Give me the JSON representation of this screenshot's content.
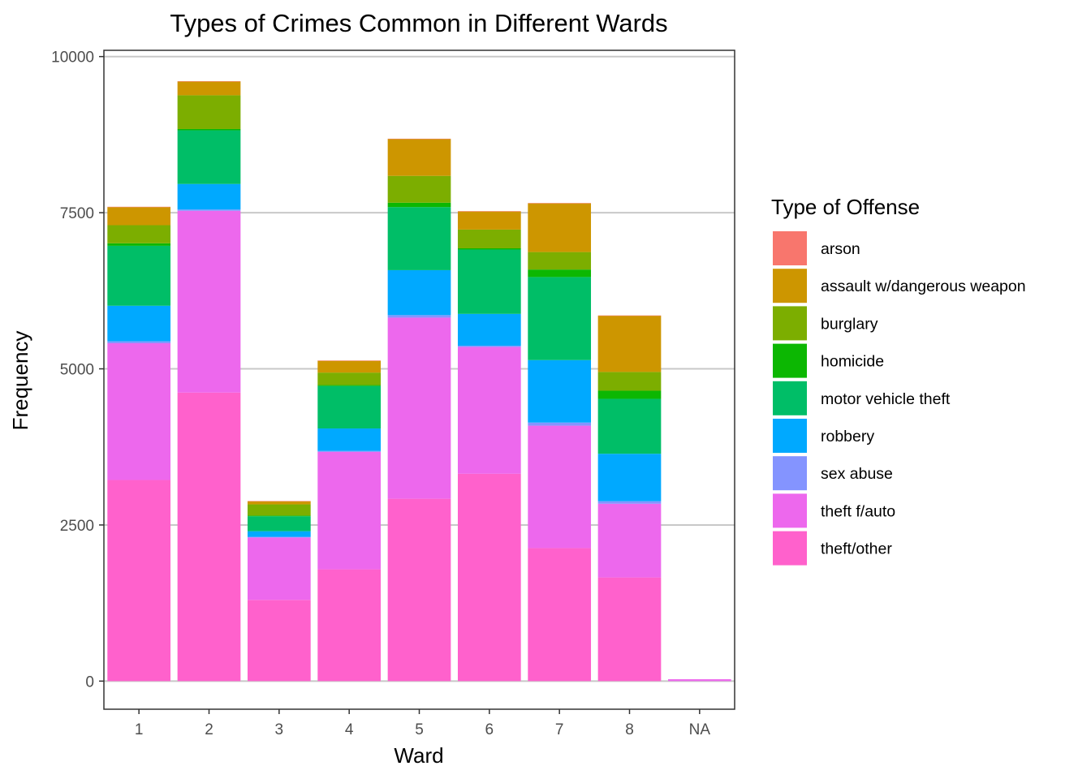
{
  "chart_data": {
    "type": "bar",
    "stacked": true,
    "title": "Types of Crimes Common in Different Wards",
    "xlabel": "Ward",
    "ylabel": "Frequency",
    "ylim": [
      -450,
      10100
    ],
    "yticks": [
      0,
      2500,
      5000,
      7500,
      10000
    ],
    "grid": true,
    "legend_position": "right",
    "legend_title": "Type of Offense",
    "categories": [
      "1",
      "2",
      "3",
      "4",
      "5",
      "6",
      "7",
      "8",
      "NA"
    ],
    "series": [
      {
        "name": "arson",
        "color": "#F8766D",
        "values": [
          5,
          5,
          3,
          3,
          5,
          5,
          5,
          5,
          0
        ]
      },
      {
        "name": "assault w/dangerous weapon",
        "color": "#CD9600",
        "values": [
          290,
          220,
          50,
          190,
          590,
          290,
          780,
          900,
          0
        ]
      },
      {
        "name": "burglary",
        "color": "#7CAE00",
        "values": [
          290,
          540,
          180,
          200,
          430,
          300,
          280,
          300,
          0
        ]
      },
      {
        "name": "homicide",
        "color": "#0CB702",
        "values": [
          40,
          20,
          10,
          15,
          70,
          20,
          120,
          130,
          0
        ]
      },
      {
        "name": "motor vehicle theft",
        "color": "#00BE67",
        "values": [
          960,
          860,
          240,
          680,
          1010,
          1030,
          1330,
          880,
          0
        ]
      },
      {
        "name": "robbery",
        "color": "#00A9FF",
        "values": [
          570,
          410,
          90,
          360,
          720,
          510,
          1000,
          760,
          0
        ]
      },
      {
        "name": "sex abuse",
        "color": "#8494FF",
        "values": [
          30,
          20,
          10,
          15,
          40,
          20,
          50,
          40,
          0
        ]
      },
      {
        "name": "theft f/auto",
        "color": "#ED68ED",
        "values": [
          2190,
          2910,
          1000,
          1880,
          2900,
          2030,
          1960,
          1180,
          30
        ]
      },
      {
        "name": "theft/other",
        "color": "#FF61CC",
        "values": [
          3220,
          4620,
          1300,
          1790,
          2920,
          3320,
          2130,
          1660,
          0
        ]
      }
    ]
  }
}
